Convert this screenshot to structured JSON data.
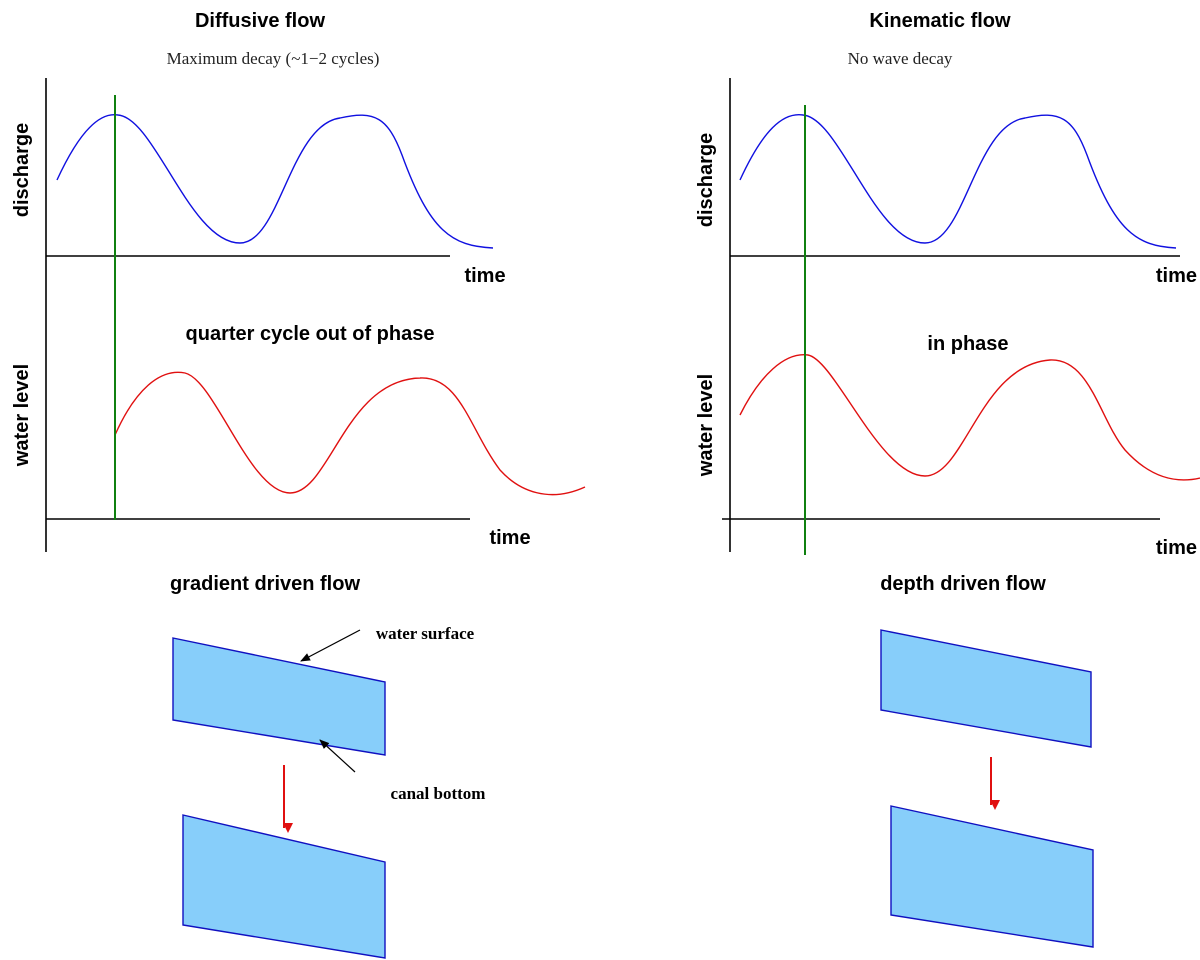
{
  "panels": [
    {
      "title": "Diffusive flow",
      "subtitle": "Maximum decay (~1−2 cycles)",
      "top_plot": {
        "y_label": "discharge",
        "x_label": "time"
      },
      "bottom_plot": {
        "y_label": "water level",
        "x_label": "time"
      },
      "phase_note": "quarter cycle out of phase",
      "flow_caption": "gradient driven flow",
      "annotations": [
        "water surface",
        "canal bottom"
      ]
    },
    {
      "title": "Kinematic flow",
      "subtitle": "No wave decay",
      "top_plot": {
        "y_label": "discharge",
        "x_label": "time"
      },
      "bottom_plot": {
        "y_label": "water level",
        "x_label": "time"
      },
      "phase_note": "in phase",
      "flow_caption": "depth driven flow"
    }
  ]
}
